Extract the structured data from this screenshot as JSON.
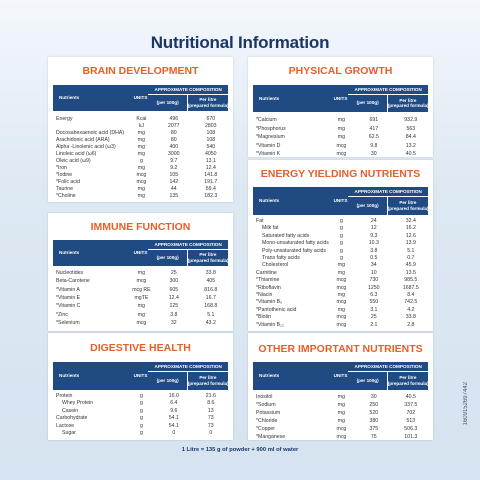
{
  "title": "Nutritional Information",
  "table_header": {
    "nutrients": "Nutrients",
    "units": "UNITS",
    "composition": "APPROXIMATE COMPOSITION",
    "per_100g": "(per 100g)",
    "per_litre": [
      "Per litre",
      "(prepared formula)"
    ]
  },
  "panels": [
    {
      "title": "BRAIN DEVELOPMENT",
      "rows": [
        [
          "Energy",
          "Kcal",
          "496",
          "670"
        ],
        [
          "",
          "kJ",
          "2077",
          "2803"
        ],
        [
          "Docosahexaenoic acid (DHA)",
          "mg",
          "80",
          "108"
        ],
        [
          "Arachidonic acid (ARA)",
          "mg",
          "80",
          "108"
        ],
        [
          "Alpha -Linolenic acid (ω3)",
          "mg",
          "400",
          "540"
        ],
        [
          "Linoleic acid (ω6)",
          "mg",
          "3000",
          "4050"
        ],
        [
          "Oleic acid (ω9)",
          "g",
          "9.7",
          "13.1"
        ],
        [
          "*Iron",
          "mg",
          "9.2",
          "12.4"
        ],
        [
          "*Iodine",
          "mcg",
          "105",
          "141.8"
        ],
        [
          "*Folic acid",
          "mcg",
          "142",
          "191.7"
        ],
        [
          "Taurine",
          "mg",
          "44",
          "59.4"
        ],
        [
          "*Choline",
          "mg",
          "135",
          "182.3"
        ]
      ]
    },
    {
      "title": "PHYSICAL GROWTH",
      "rows": [
        [
          "*Calcium",
          "mg",
          "691",
          "932.9"
        ],
        [
          "*Phosphorus",
          "mg",
          "417",
          "563"
        ],
        [
          "*Magnesium",
          "mg",
          "62.5",
          "84.4"
        ],
        [
          "*Vitamin D",
          "mcg",
          "9.8",
          "13.2"
        ],
        [
          "*Vitamin K",
          "mcg",
          "30",
          "40.5"
        ]
      ]
    },
    {
      "title": "IMMUNE FUNCTION",
      "rows": [
        [
          "Nucleotides",
          "mg",
          "25",
          "33.8"
        ],
        [
          "Beta-Carotene",
          "mcg",
          "300",
          "405"
        ],
        [
          "*Vitamin A",
          "mcg RE",
          "605",
          "816.8"
        ],
        [
          "*Vitamin E",
          "mgTE",
          "12.4",
          "16.7"
        ],
        [
          "*Vitamin C",
          "mg",
          "125",
          "168.8"
        ],
        [
          "*Zinc",
          "mg",
          "3.8",
          "5.1"
        ],
        [
          "*Selenium",
          "mcg",
          "32",
          "43.2"
        ]
      ]
    },
    {
      "title": "ENERGY YIELDING NUTRIENTS",
      "rows": [
        [
          "Fat",
          "g",
          "24",
          "32.4"
        ],
        [
          "Milk fat",
          "g",
          "12",
          "16.2"
        ],
        [
          "Saturated fatty acids",
          "g",
          "9.3",
          "12.6"
        ],
        [
          "Mono-unsaturated fatty acids",
          "g",
          "10.3",
          "13.9"
        ],
        [
          "Poly-unsaturated fatty acids",
          "g",
          "3.8",
          "5.1"
        ],
        [
          "Trans fatty acids",
          "g",
          "0.5",
          "0.7"
        ],
        [
          "Cholesterol",
          "mg",
          "34",
          "45.9"
        ],
        [
          "Carnitine",
          "mg",
          "10",
          "13.5"
        ],
        [
          "*Thiamine",
          "mcg",
          "730",
          "985.5"
        ],
        [
          "*Riboflavin",
          "mcg",
          "1250",
          "1687.5"
        ],
        [
          "*Niacin",
          "mg",
          "6.3",
          "8.4"
        ],
        [
          "*Vitamin B₆",
          "mcg",
          "550",
          "742.5"
        ],
        [
          "*Pantothenic acid",
          "mg",
          "3.1",
          "4.2"
        ],
        [
          "*Biotin",
          "mcg",
          "25",
          "33.8"
        ],
        [
          "*Vitamin B₁₂",
          "mcg",
          "2.1",
          "2.8"
        ]
      ]
    },
    {
      "title": "DIGESTIVE HEALTH",
      "rows": [
        [
          "Protein",
          "g",
          "16.0",
          "21.6"
        ],
        [
          "Whey Protein",
          "g",
          "6.4",
          "8.6"
        ],
        [
          "Casein",
          "g",
          "9.6",
          "13"
        ],
        [
          "Carbohydrate",
          "g",
          "54.1",
          "73"
        ],
        [
          "Lactose",
          "g",
          "54.1",
          "73"
        ],
        [
          "Sugar",
          "g",
          "0",
          "0"
        ]
      ]
    },
    {
      "title": "OTHER IMPORTANT NUTRIENTS",
      "rows": [
        [
          "Inositol",
          "mg",
          "30",
          "40.5"
        ],
        [
          "*Sodium",
          "mg",
          "250",
          "337.5"
        ],
        [
          "Potassium",
          "mg",
          "520",
          "702"
        ],
        [
          "*Chloride",
          "mg",
          "380",
          "513"
        ],
        [
          "*Copper",
          "mcg",
          "375",
          "506.3"
        ],
        [
          "*Manganese",
          "mcg",
          "75",
          "101.3"
        ]
      ]
    }
  ],
  "footer": "1 Litre = 135 g of powder + 900 ml of water",
  "code": "1609152697442"
}
